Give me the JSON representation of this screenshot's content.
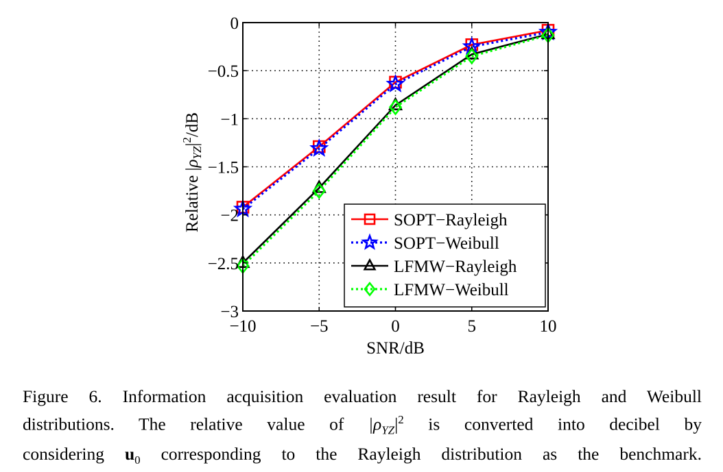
{
  "chart_data": {
    "type": "line",
    "title": "",
    "xlabel": "SNR/dB",
    "ylabel_prefix": "Relative |",
    "ylabel_rho": "ρ",
    "ylabel_sub": "YZ",
    "ylabel_suffix": "|",
    "ylabel_sup": "2",
    "ylabel_unit": "/dB",
    "xlim": [
      -10,
      10
    ],
    "ylim": [
      -3,
      0
    ],
    "xticks": [
      -10,
      -5,
      0,
      5,
      10
    ],
    "xtick_labels": [
      "−10",
      "−5",
      "0",
      "5",
      "10"
    ],
    "yticks": [
      0,
      -0.5,
      -1,
      -1.5,
      -2,
      -2.5,
      -3
    ],
    "ytick_labels": [
      "0",
      "−0.5",
      "−1",
      "−1.5",
      "−2",
      "−2.5",
      "−3"
    ],
    "grid": true,
    "legend_position": "bottom-right",
    "x": [
      -10,
      -5,
      0,
      5,
      10
    ],
    "series": [
      {
        "name": "SOPT−Rayleigh",
        "values": [
          -1.92,
          -1.29,
          -0.62,
          -0.23,
          -0.08
        ],
        "color": "#ff0000",
        "dash": "solid",
        "marker": "square"
      },
      {
        "name": "SOPT−Weibull",
        "values": [
          -1.94,
          -1.31,
          -0.64,
          -0.25,
          -0.1
        ],
        "color": "#0000ff",
        "dash": "dotted",
        "marker": "star"
      },
      {
        "name": "LFMW−Rayleigh",
        "values": [
          -2.5,
          -1.72,
          -0.86,
          -0.33,
          -0.12
        ],
        "color": "#000000",
        "dash": "solid",
        "marker": "triangle"
      },
      {
        "name": "LFMW−Weibull",
        "values": [
          -2.53,
          -1.75,
          -0.88,
          -0.35,
          -0.13
        ],
        "color": "#00ff00",
        "dash": "dotted",
        "marker": "diamond"
      }
    ]
  },
  "caption": {
    "line1": "Figure 6.  Information acquisition evaluation result for Rayleigh and Weibull",
    "line2_a": "distributions. The relative value of ",
    "line2_math": "|ρ",
    "line2_sub": "YZ",
    "line2_math2": "|",
    "line2_sup": "2",
    "line2_b": " is converted into decibel by",
    "line3_a": "considering ",
    "line3_bold": "u",
    "line3_sub": "0",
    "line3_b": " corresponding to the Rayleigh distribution as the benchmark."
  }
}
